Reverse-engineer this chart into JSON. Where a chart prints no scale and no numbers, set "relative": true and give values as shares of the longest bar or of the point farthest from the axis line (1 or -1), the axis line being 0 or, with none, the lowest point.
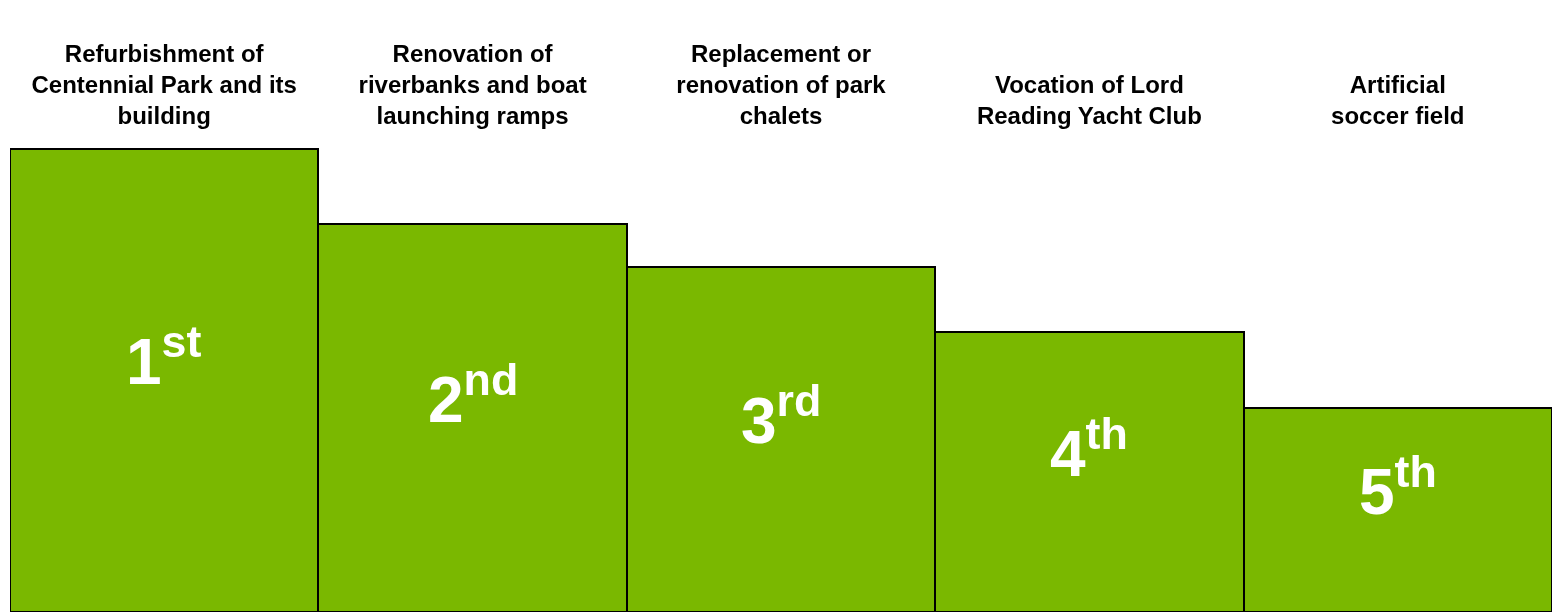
{
  "chart_data": {
    "type": "bar",
    "relative": true,
    "categories": [
      "Refurbishment of\nCentennial Park and its\nbuilding",
      "Renovation of\nriverbanks and boat\nlaunching ramps",
      "Replacement or\nrenovation of park\nchalets",
      "Vocation of Lord\nReading Yacht Club",
      "Artificial\nsoccer field"
    ],
    "values": [
      1,
      0.837,
      0.744,
      0.604,
      0.441
    ],
    "annotations": [
      "1$^{st}$",
      "2$^{nd}$",
      "3$^{rd}$",
      "4$^{th}$",
      "5$^{th}$"
    ],
    "color": "#7ab800",
    "legend": false
  }
}
